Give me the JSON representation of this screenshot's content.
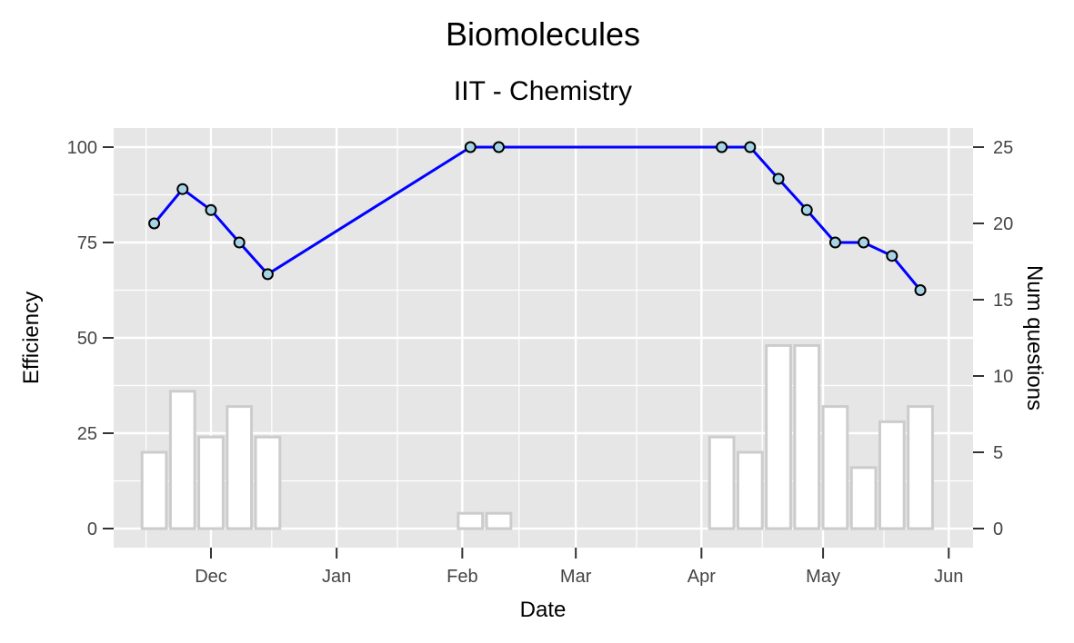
{
  "chart_data": {
    "type": "line",
    "title": "Biomolecules",
    "subtitle": "IIT - Chemistry",
    "xlabel": "Date",
    "ylabel": "Efficiency",
    "y2label": "Num questions",
    "xlim": [
      "2018-11-07",
      "2019-06-07"
    ],
    "ylim": [
      -5,
      105
    ],
    "y2lim": [
      -1.25,
      26.25
    ],
    "x_ticks": [
      {
        "date": "2018-12-01",
        "label": "Dec"
      },
      {
        "date": "2019-01-01",
        "label": "Jan"
      },
      {
        "date": "2019-02-01",
        "label": "Feb"
      },
      {
        "date": "2019-03-01",
        "label": "Mar"
      },
      {
        "date": "2019-04-01",
        "label": "Apr"
      },
      {
        "date": "2019-05-01",
        "label": "May"
      },
      {
        "date": "2019-06-01",
        "label": "Jun"
      }
    ],
    "y_ticks": [
      0,
      25,
      50,
      75,
      100
    ],
    "y2_ticks": [
      0,
      5,
      10,
      15,
      20,
      25
    ],
    "grid": true,
    "colors": {
      "panel": "#e6e6e6",
      "grid": "#ffffff",
      "line": "#0000ff",
      "point_fill": "#a6d4e6",
      "point_stroke": "#000000",
      "bar_fill": "#ffffff",
      "bar_stroke": "#cccccc"
    },
    "efficiency_series": {
      "x": [
        "2018-11-17",
        "2018-11-24",
        "2018-12-01",
        "2018-12-08",
        "2018-12-15",
        "2019-02-03",
        "2019-02-10",
        "2019-04-06",
        "2019-04-13",
        "2019-04-20",
        "2019-04-27",
        "2019-05-04",
        "2019-05-11",
        "2019-05-18",
        "2019-05-25"
      ],
      "y": [
        80,
        89,
        83.5,
        75,
        66.7,
        100,
        100,
        100,
        100,
        91.7,
        83.5,
        75,
        75,
        71.5,
        62.5
      ]
    },
    "questions_series": {
      "x": [
        "2018-11-17",
        "2018-11-24",
        "2018-12-01",
        "2018-12-08",
        "2018-12-15",
        "2019-02-03",
        "2019-02-10",
        "2019-04-06",
        "2019-04-13",
        "2019-04-20",
        "2019-04-27",
        "2019-05-04",
        "2019-05-11",
        "2019-05-18",
        "2019-05-25"
      ],
      "y": [
        5,
        9,
        6,
        8,
        6,
        1,
        1,
        6,
        5,
        12,
        12,
        8,
        4,
        7,
        8
      ]
    }
  }
}
